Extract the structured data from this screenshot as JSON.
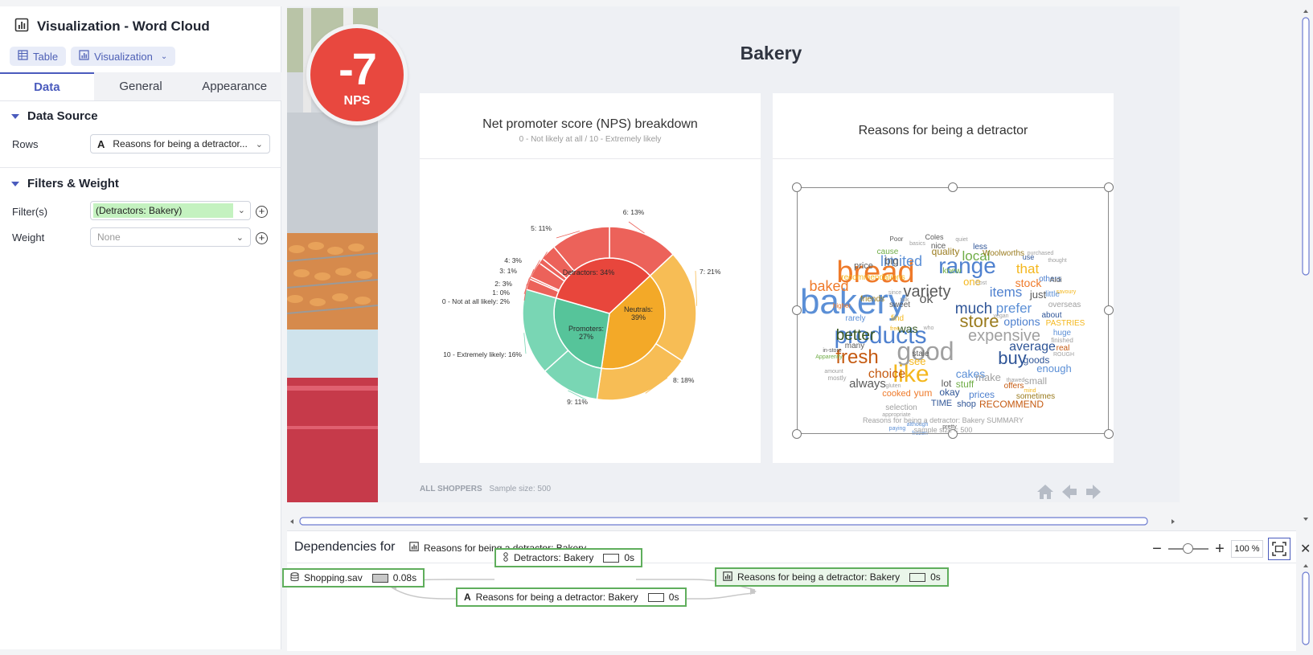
{
  "panel": {
    "title": "Visualization - Word Cloud",
    "view_tabs": [
      "Table",
      "Visualization"
    ],
    "sub_tabs": [
      "Data",
      "General",
      "Appearance"
    ],
    "data_source_header": "Data Source",
    "rows_label": "Rows",
    "rows_value": "Reasons for being a detractor...",
    "filters_header": "Filters & Weight",
    "filters_label": "Filter(s)",
    "filter_value": "(Detractors:  Bakery)",
    "weight_label": "Weight",
    "weight_value": "None"
  },
  "dashboard": {
    "nps_value": "-7",
    "nps_label": "NPS",
    "title": "Bakery",
    "pie_card": {
      "title": "Net promoter score (NPS) breakdown",
      "subtitle": "0 - Not likely at all / 10 - Extremely likely"
    },
    "cloud_card": {
      "title": "Reasons for being a detractor",
      "caption1": "Reasons for being a detractor: Bakery SUMMARY",
      "caption2": "sample size = 500"
    },
    "footer_label": "ALL SHOPPERS",
    "footer_sample": "Sample size: 500"
  },
  "chart_data": {
    "type": "pie",
    "subtype": "sunburst",
    "inner": [
      {
        "label": "Detractors: 34%",
        "value": 34,
        "color": "#e8463c"
      },
      {
        "label": "Neutrals: 39%",
        "value": 39,
        "color": "#f3a928"
      },
      {
        "label": "Promoters: 27%",
        "value": 27,
        "color": "#56c49a"
      }
    ],
    "outer": [
      {
        "label": "0 - Not at all likely: 2%",
        "value": 2,
        "group": 0
      },
      {
        "label": "1: 0%",
        "value": 0.4,
        "group": 0
      },
      {
        "label": "2: 3%",
        "value": 3,
        "group": 0
      },
      {
        "label": "3: 1%",
        "value": 1,
        "group": 0
      },
      {
        "label": "4: 3%",
        "value": 3,
        "group": 0
      },
      {
        "label": "5: 11%",
        "value": 11,
        "group": 0
      },
      {
        "label": "6: 13%",
        "value": 13,
        "group": 0
      },
      {
        "label": "7: 21%",
        "value": 21,
        "group": 1
      },
      {
        "label": "8: 18%",
        "value": 18,
        "group": 1
      },
      {
        "label": "9: 11%",
        "value": 11,
        "group": 2
      },
      {
        "label": "10 - Extremely likely: 16%",
        "value": 16,
        "group": 2
      }
    ],
    "outer_colors": [
      "#ec625a",
      "#f7bd55",
      "#79d6b4"
    ]
  },
  "word_cloud": [
    {
      "w": "bakery",
      "c": "#5b8fd6"
    },
    {
      "w": "bread",
      "c": "#ef7a2a"
    },
    {
      "w": "products",
      "c": "#4f81cf"
    },
    {
      "w": "good",
      "c": "#a0a0a0"
    },
    {
      "w": "like",
      "c": "#f4b71d"
    },
    {
      "w": "range",
      "c": "#4f81cf"
    },
    {
      "w": "variety",
      "c": "#5a5a5a"
    },
    {
      "w": "store",
      "c": "#9a7b1e"
    },
    {
      "w": "buy",
      "c": "#2f5597"
    },
    {
      "w": "fresh",
      "c": "#c55a11"
    },
    {
      "w": "expensive",
      "c": "#a0a0a0"
    },
    {
      "w": "much",
      "c": "#2f5597"
    },
    {
      "w": "better",
      "c": "#375623"
    },
    {
      "w": "limited",
      "c": "#5b8fd6"
    },
    {
      "w": "baked",
      "c": "#ef7a2a"
    },
    {
      "w": "local",
      "c": "#70ad47"
    },
    {
      "w": "items",
      "c": "#4f81cf"
    },
    {
      "w": "prefer",
      "c": "#5b8fd6"
    },
    {
      "w": "average",
      "c": "#2f5597"
    },
    {
      "w": "that",
      "c": "#f4b71d"
    },
    {
      "w": "stock",
      "c": "#ef7a2a"
    },
    {
      "w": "choice",
      "c": "#c55a11"
    },
    {
      "w": "always",
      "c": "#5a5a5a"
    },
    {
      "w": "cakes",
      "c": "#5b8fd6"
    },
    {
      "w": "make",
      "c": "#a0a0a0"
    },
    {
      "w": "options",
      "c": "#4f81cf"
    },
    {
      "w": "big",
      "c": "#5a5a5a"
    },
    {
      "w": "ok",
      "c": "#5a5a5a"
    },
    {
      "w": "was",
      "c": "#375623"
    },
    {
      "w": "just",
      "c": "#5a5a5a"
    },
    {
      "w": "quality",
      "c": "#9a7b1e"
    },
    {
      "w": "price",
      "c": "#5a5a5a"
    },
    {
      "w": "one",
      "c": "#f4b71d"
    },
    {
      "w": "goods",
      "c": "#2f5597"
    },
    {
      "w": "enough",
      "c": "#5b8fd6"
    },
    {
      "w": "small",
      "c": "#a0a0a0"
    },
    {
      "w": "see",
      "c": "#f4b71d"
    },
    {
      "w": "lot",
      "c": "#5a5a5a"
    },
    {
      "w": "stuff",
      "c": "#70ad47"
    },
    {
      "w": "prices",
      "c": "#4f81cf"
    },
    {
      "w": "okay",
      "c": "#2f5597"
    },
    {
      "w": "yum",
      "c": "#ef7a2a"
    },
    {
      "w": "cooked",
      "c": "#ef7a2a"
    },
    {
      "w": "TIME",
      "c": "#2f5597"
    },
    {
      "w": "shop",
      "c": "#2f5597"
    },
    {
      "w": "RECOMMEND",
      "c": "#c55a11"
    },
    {
      "w": "sometimes",
      "c": "#9a7b1e"
    },
    {
      "w": "offers",
      "c": "#c55a11"
    },
    {
      "w": "huge",
      "c": "#5b8fd6"
    },
    {
      "w": "PASTRIES",
      "c": "#f4b71d"
    },
    {
      "w": "overseas",
      "c": "#a0a0a0"
    },
    {
      "w": "about",
      "c": "#2f5597"
    },
    {
      "w": "little",
      "c": "#5b8fd6"
    },
    {
      "w": "others",
      "c": "#4f81cf"
    },
    {
      "w": "Aldi",
      "c": "#5a5a5a"
    },
    {
      "w": "use",
      "c": "#2f5597"
    },
    {
      "w": "Woolworths",
      "c": "#9a7b1e"
    },
    {
      "w": "less",
      "c": "#2f5597"
    },
    {
      "w": "knew",
      "c": "#70ad47"
    },
    {
      "w": "nice",
      "c": "#5a5a5a"
    },
    {
      "w": "Coles",
      "c": "#5a5a5a"
    },
    {
      "w": "cause",
      "c": "#70ad47"
    },
    {
      "w": "recommendations",
      "c": "#f4b71d"
    },
    {
      "w": "friends",
      "c": "#9a7b1e"
    },
    {
      "w": "sweet",
      "c": "#5a5a5a"
    },
    {
      "w": "find",
      "c": "#f4b71d"
    },
    {
      "w": "rarely",
      "c": "#5b8fd6"
    },
    {
      "w": "many",
      "c": "#5a5a5a"
    },
    {
      "w": "stale",
      "c": "#5a5a5a"
    },
    {
      "w": "selection",
      "c": "#a0a0a0"
    },
    {
      "w": "real",
      "c": "#c55a11"
    },
    {
      "w": "Poor",
      "c": "#5a5a5a"
    },
    {
      "w": "quiet",
      "c": "#a0a0a0"
    },
    {
      "w": "basics",
      "c": "#a0a0a0"
    },
    {
      "w": "purchased",
      "c": "#a0a0a0"
    },
    {
      "w": "thought",
      "c": "#a0a0a0"
    },
    {
      "w": "savoury",
      "c": "#f4b71d"
    },
    {
      "w": "Cost",
      "c": "#a0a0a0"
    },
    {
      "w": "since",
      "c": "#a0a0a0"
    },
    {
      "w": "talk",
      "c": "#a0a0a0"
    },
    {
      "w": "higher",
      "c": "#ef7a2a"
    },
    {
      "w": "free",
      "c": "#f4b71d"
    },
    {
      "w": "who",
      "c": "#a0a0a0"
    },
    {
      "w": "vegan",
      "c": "#a0a0a0"
    },
    {
      "w": "in-store",
      "c": "#5a5a5a"
    },
    {
      "w": "Apparently",
      "c": "#70ad47"
    },
    {
      "w": "amount",
      "c": "#a0a0a0"
    },
    {
      "w": "mostly",
      "c": "#a0a0a0"
    },
    {
      "w": "gluten",
      "c": "#a0a0a0"
    },
    {
      "w": "appropriate",
      "c": "#a0a0a0"
    },
    {
      "w": "thawed",
      "c": "#a0a0a0"
    },
    {
      "w": "mind",
      "c": "#f4b71d"
    },
    {
      "w": "finished",
      "c": "#a0a0a0"
    },
    {
      "w": "ROUGH",
      "c": "#a0a0a0"
    },
    {
      "w": "paying",
      "c": "#5b8fd6"
    },
    {
      "w": "although",
      "c": "#5b8fd6"
    },
    {
      "w": "frozen",
      "c": "#5b8fd6"
    },
    {
      "w": "pretty",
      "c": "#5a5a5a"
    }
  ],
  "dependencies": {
    "title": "Dependencies for",
    "target": "Reasons for being a detractor: Bakery",
    "zoom": "100 %",
    "nodes": [
      {
        "label": "Shopping.sav",
        "time": "0.08s"
      },
      {
        "label": "Detractors: Bakery",
        "time": "0s"
      },
      {
        "label": "Reasons for being a detractor: Bakery",
        "time": "0s"
      },
      {
        "label": "Reasons for being a detractor: Bakery",
        "time": "0s"
      }
    ]
  }
}
